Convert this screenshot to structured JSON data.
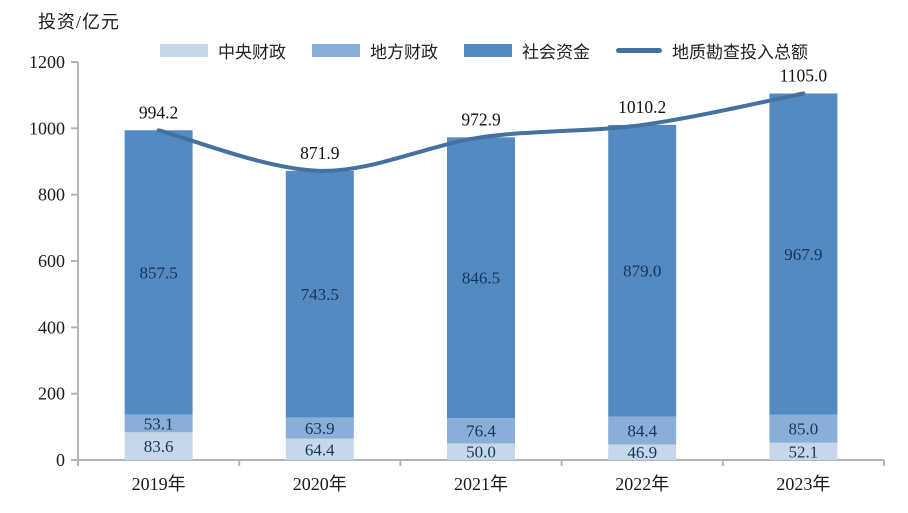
{
  "title": "投资/亿元",
  "legend": {
    "items": [
      {
        "label": "中央财政",
        "type": "swatch",
        "color_key": "central"
      },
      {
        "label": "地方财政",
        "type": "swatch",
        "color_key": "local"
      },
      {
        "label": "社会资金",
        "type": "swatch",
        "color_key": "social"
      },
      {
        "label": "地质勘查投入总额",
        "type": "line",
        "color_key": "line"
      }
    ]
  },
  "colors": {
    "central": "#c7d7ea",
    "local": "#89aed8",
    "social": "#5589c2",
    "line": "#44719f",
    "segment_label": "#16365c",
    "total_label": "#111111",
    "tick_label": "#1a1a1a",
    "axis": "#b5b5b5"
  },
  "chart_data": {
    "type": "bar",
    "stacked": true,
    "title": "投资/亿元",
    "ylabel": "投资/亿元",
    "xlabel": "",
    "categories": [
      "2019年",
      "2020年",
      "2021年",
      "2022年",
      "2023年"
    ],
    "series": [
      {
        "name": "中央财政",
        "values": [
          83.6,
          64.4,
          50.0,
          46.9,
          52.1
        ]
      },
      {
        "name": "地方财政",
        "values": [
          53.1,
          63.9,
          76.4,
          84.4,
          85.0
        ]
      },
      {
        "name": "社会资金",
        "values": [
          857.5,
          743.5,
          846.5,
          879.0,
          967.9
        ]
      }
    ],
    "line_series": {
      "name": "地质勘查投入总额",
      "values": [
        994.2,
        871.9,
        972.9,
        1010.2,
        1105.0
      ]
    },
    "ylim": [
      0,
      1200
    ],
    "yticks": [
      0,
      200,
      400,
      600,
      800,
      1000,
      1200
    ],
    "grid": false,
    "legend_position": "top",
    "value_decimals": 1
  }
}
